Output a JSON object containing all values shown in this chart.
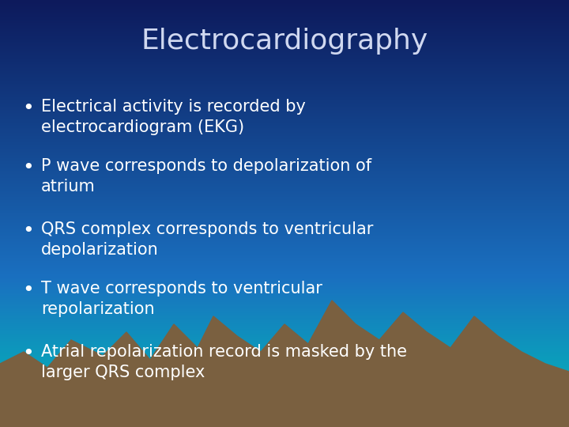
{
  "title": "Electrocardiography",
  "title_color": "#d0d8f0",
  "title_fontsize": 26,
  "bullet_points": [
    "Electrical activity is recorded by\nelectrocardiogram (EKG)",
    "P wave corresponds to depolarization of\natrium",
    "QRS complex corresponds to ventricular\ndepolarization",
    "T wave corresponds to ventricular\nrepolarization",
    "Atrial repolarization record is masked by the\nlarger QRS complex"
  ],
  "bullet_color": "#ffffff",
  "bullet_fontsize": 15,
  "bg_top_color": "#0d1a5c",
  "bg_mid_color": "#1255a0",
  "bg_bottom_color": "#00c8c0",
  "mountain_color": "#7a6040",
  "mountain_shadow": "#3a3020",
  "teal_accent": "#00d8c8",
  "figsize": [
    7.2,
    5.4
  ],
  "dpi": 100
}
